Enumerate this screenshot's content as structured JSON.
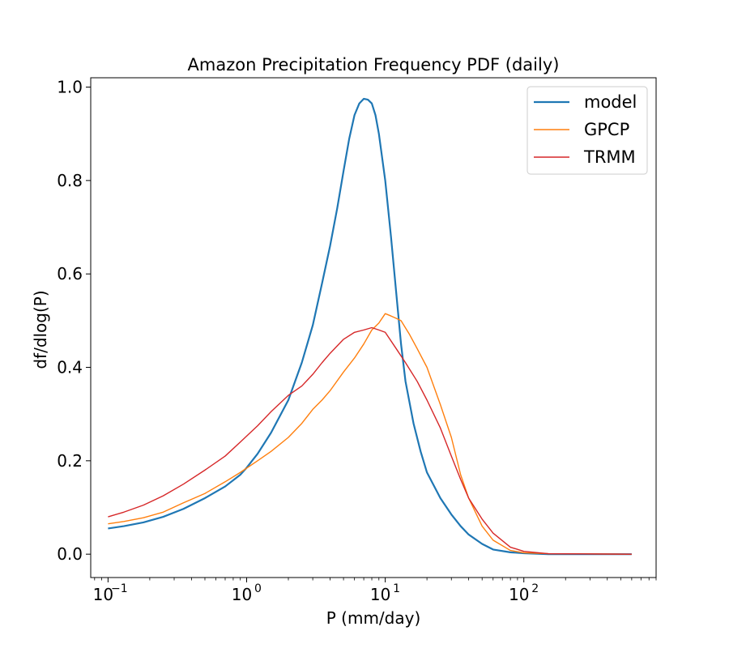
{
  "chart_data": {
    "type": "line",
    "title": "Amazon Precipitation Frequency PDF (daily)",
    "xlabel": "P (mm/day)",
    "ylabel": "df/dlog(P)",
    "xscale": "log",
    "xlim": [
      0.075,
      900
    ],
    "ylim": [
      -0.05,
      1.02
    ],
    "x_ticks": [
      {
        "value": 0.1,
        "base": "10",
        "exp": "−1"
      },
      {
        "value": 1,
        "base": "10",
        "exp": "0"
      },
      {
        "value": 10,
        "base": "10",
        "exp": "1"
      },
      {
        "value": 100,
        "base": "10",
        "exp": "2"
      }
    ],
    "y_ticks": [
      "0.0",
      "0.2",
      "0.4",
      "0.6",
      "0.8",
      "1.0"
    ],
    "legend": {
      "position": "top-right"
    },
    "series": [
      {
        "name": "model",
        "color": "#1f77b4",
        "points": [
          [
            0.1,
            0.055
          ],
          [
            0.13,
            0.06
          ],
          [
            0.18,
            0.068
          ],
          [
            0.25,
            0.08
          ],
          [
            0.35,
            0.097
          ],
          [
            0.5,
            0.12
          ],
          [
            0.7,
            0.145
          ],
          [
            0.9,
            0.17
          ],
          [
            1.0,
            0.185
          ],
          [
            1.2,
            0.215
          ],
          [
            1.5,
            0.26
          ],
          [
            2.0,
            0.33
          ],
          [
            2.5,
            0.41
          ],
          [
            3.0,
            0.49
          ],
          [
            3.5,
            0.58
          ],
          [
            4.0,
            0.66
          ],
          [
            4.5,
            0.74
          ],
          [
            5.0,
            0.82
          ],
          [
            5.5,
            0.89
          ],
          [
            6.0,
            0.94
          ],
          [
            6.5,
            0.965
          ],
          [
            7.0,
            0.975
          ],
          [
            7.5,
            0.973
          ],
          [
            8.0,
            0.965
          ],
          [
            8.5,
            0.94
          ],
          [
            9.0,
            0.9
          ],
          [
            10.0,
            0.8
          ],
          [
            11.0,
            0.68
          ],
          [
            12.0,
            0.56
          ],
          [
            13.0,
            0.45
          ],
          [
            14.0,
            0.37
          ],
          [
            16.0,
            0.28
          ],
          [
            18.0,
            0.22
          ],
          [
            20.0,
            0.175
          ],
          [
            25.0,
            0.12
          ],
          [
            30.0,
            0.085
          ],
          [
            35.0,
            0.06
          ],
          [
            40.0,
            0.042
          ],
          [
            50.0,
            0.022
          ],
          [
            60.0,
            0.01
          ],
          [
            80.0,
            0.004
          ],
          [
            100.0,
            0.002
          ],
          [
            150.0,
            0.0
          ],
          [
            600.0,
            0.0
          ]
        ]
      },
      {
        "name": "GPCP",
        "color": "#ff7f0e",
        "points": [
          [
            0.1,
            0.065
          ],
          [
            0.13,
            0.07
          ],
          [
            0.18,
            0.078
          ],
          [
            0.25,
            0.09
          ],
          [
            0.35,
            0.11
          ],
          [
            0.5,
            0.13
          ],
          [
            0.7,
            0.155
          ],
          [
            0.9,
            0.175
          ],
          [
            1.2,
            0.2
          ],
          [
            1.5,
            0.22
          ],
          [
            2.0,
            0.25
          ],
          [
            2.5,
            0.28
          ],
          [
            3.0,
            0.31
          ],
          [
            3.5,
            0.33
          ],
          [
            4.0,
            0.35
          ],
          [
            5.0,
            0.39
          ],
          [
            6.0,
            0.42
          ],
          [
            7.0,
            0.45
          ],
          [
            8.0,
            0.48
          ],
          [
            9.0,
            0.495
          ],
          [
            10.0,
            0.515
          ],
          [
            11.0,
            0.51
          ],
          [
            12.0,
            0.505
          ],
          [
            13.0,
            0.5
          ],
          [
            15.0,
            0.47
          ],
          [
            17.0,
            0.44
          ],
          [
            20.0,
            0.4
          ],
          [
            25.0,
            0.32
          ],
          [
            30.0,
            0.25
          ],
          [
            35.0,
            0.17
          ],
          [
            40.0,
            0.12
          ],
          [
            50.0,
            0.06
          ],
          [
            60.0,
            0.03
          ],
          [
            80.0,
            0.008
          ],
          [
            100.0,
            0.003
          ],
          [
            150.0,
            0.001
          ],
          [
            600.0,
            0.0
          ]
        ]
      },
      {
        "name": "TRMM",
        "color": "#d62728",
        "points": [
          [
            0.1,
            0.08
          ],
          [
            0.13,
            0.09
          ],
          [
            0.18,
            0.105
          ],
          [
            0.25,
            0.125
          ],
          [
            0.35,
            0.15
          ],
          [
            0.5,
            0.18
          ],
          [
            0.7,
            0.21
          ],
          [
            0.9,
            0.24
          ],
          [
            1.2,
            0.275
          ],
          [
            1.5,
            0.305
          ],
          [
            2.0,
            0.34
          ],
          [
            2.5,
            0.36
          ],
          [
            3.0,
            0.385
          ],
          [
            3.5,
            0.41
          ],
          [
            4.0,
            0.43
          ],
          [
            5.0,
            0.46
          ],
          [
            6.0,
            0.475
          ],
          [
            7.0,
            0.48
          ],
          [
            8.0,
            0.485
          ],
          [
            9.0,
            0.48
          ],
          [
            10.0,
            0.475
          ],
          [
            12.0,
            0.44
          ],
          [
            14.0,
            0.41
          ],
          [
            17.0,
            0.37
          ],
          [
            20.0,
            0.33
          ],
          [
            25.0,
            0.27
          ],
          [
            30.0,
            0.21
          ],
          [
            35.0,
            0.16
          ],
          [
            40.0,
            0.12
          ],
          [
            50.0,
            0.075
          ],
          [
            60.0,
            0.045
          ],
          [
            80.0,
            0.015
          ],
          [
            100.0,
            0.006
          ],
          [
            150.0,
            0.001
          ],
          [
            600.0,
            0.0
          ]
        ]
      }
    ]
  }
}
